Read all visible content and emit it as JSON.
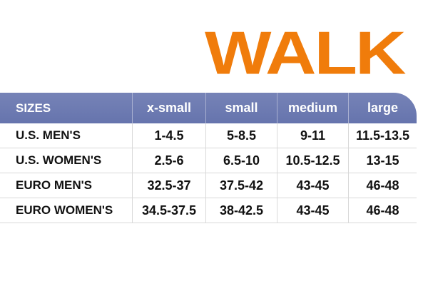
{
  "brand": {
    "title": "WALK",
    "color": "#f07c0b"
  },
  "table": {
    "header_color": "#6f7cb3",
    "headers": [
      "SIZES",
      "x-small",
      "small",
      "medium",
      "large"
    ],
    "rows": [
      {
        "label": "U.S. MEN'S",
        "values": [
          "1-4.5",
          "5-8.5",
          "9-11",
          "11.5-13.5"
        ]
      },
      {
        "label": "U.S. WOMEN'S",
        "values": [
          "2.5-6",
          "6.5-10",
          "10.5-12.5",
          "13-15"
        ]
      },
      {
        "label": "EURO MEN'S",
        "values": [
          "32.5-37",
          "37.5-42",
          "43-45",
          "46-48"
        ]
      },
      {
        "label": "EURO WOMEN'S",
        "values": [
          "34.5-37.5",
          "38-42.5",
          "43-45",
          "46-48"
        ]
      }
    ]
  }
}
